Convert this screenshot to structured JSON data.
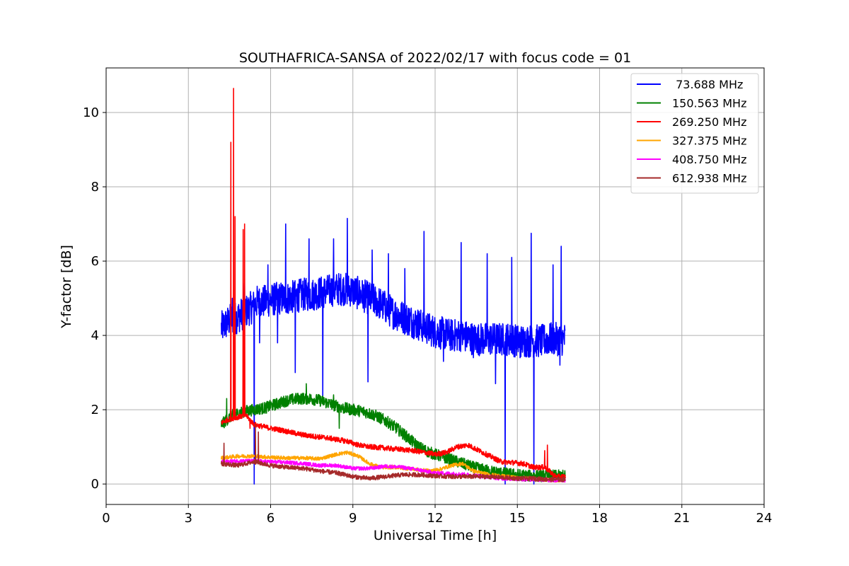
{
  "chart_data": {
    "type": "line",
    "title": "SOUTHAFRICA-SANSA of 2022/02/17 with focus code = 01",
    "xlabel": "Universal Time [h]",
    "ylabel": "Y-factor [dB]",
    "xlim": [
      0,
      24
    ],
    "ylim": [
      -0.55,
      11.2
    ],
    "xticks": [
      0,
      3,
      6,
      9,
      12,
      15,
      18,
      21,
      24
    ],
    "yticks": [
      0,
      2,
      4,
      6,
      8,
      10
    ],
    "grid": true,
    "legend_position": "top-right",
    "series": [
      {
        "name": " 73.688 MHz",
        "color": "#0000ff",
        "x": [
          4.2,
          4.5,
          4.8,
          5.0,
          5.2,
          5.4,
          5.5,
          5.7,
          6.0,
          6.3,
          6.6,
          6.9,
          7.2,
          7.5,
          7.8,
          8.1,
          8.4,
          8.7,
          9.0,
          9.3,
          9.6,
          9.9,
          10.2,
          10.5,
          10.8,
          11.1,
          11.4,
          11.7,
          12.0,
          12.3,
          12.6,
          12.9,
          13.2,
          13.5,
          13.8,
          14.1,
          14.4,
          14.7,
          15.0,
          15.3,
          15.6,
          15.9,
          16.2,
          16.5,
          16.75
        ],
        "y": [
          4.2,
          4.4,
          4.5,
          4.6,
          4.7,
          4.8,
          4.9,
          4.9,
          4.95,
          5.0,
          5.0,
          5.05,
          5.1,
          5.1,
          5.15,
          5.2,
          5.25,
          5.25,
          5.2,
          5.1,
          5.0,
          4.9,
          4.75,
          4.6,
          4.5,
          4.4,
          4.3,
          4.2,
          4.1,
          4.05,
          4.0,
          4.0,
          3.95,
          3.9,
          3.9,
          3.9,
          3.9,
          3.9,
          3.85,
          3.85,
          3.85,
          3.85,
          3.9,
          3.9,
          3.9
        ],
        "noise": 0.45,
        "spikes": [
          [
            4.6,
            5.0
          ],
          [
            5.05,
            5.4
          ],
          [
            5.4,
            0.0
          ],
          [
            5.6,
            3.8
          ],
          [
            5.9,
            5.9
          ],
          [
            6.25,
            3.8
          ],
          [
            6.55,
            7.0
          ],
          [
            6.9,
            3.0
          ],
          [
            7.4,
            6.6
          ],
          [
            7.9,
            2.3
          ],
          [
            8.3,
            6.6
          ],
          [
            8.8,
            7.15
          ],
          [
            9.55,
            2.75
          ],
          [
            9.7,
            6.3
          ],
          [
            10.3,
            6.2
          ],
          [
            10.9,
            5.8
          ],
          [
            11.6,
            6.8
          ],
          [
            12.3,
            3.3
          ],
          [
            12.95,
            6.5
          ],
          [
            13.4,
            3.4
          ],
          [
            13.9,
            6.2
          ],
          [
            14.2,
            2.7
          ],
          [
            14.55,
            0.0
          ],
          [
            14.8,
            6.1
          ],
          [
            15.1,
            3.4
          ],
          [
            15.5,
            6.75
          ],
          [
            15.6,
            0.0
          ],
          [
            16.3,
            5.9
          ],
          [
            16.55,
            3.2
          ],
          [
            16.6,
            6.4
          ]
        ]
      },
      {
        "name": "150.563 MHz",
        "color": "#008000",
        "x": [
          4.2,
          4.6,
          5.0,
          5.4,
          5.8,
          6.2,
          6.6,
          7.0,
          7.4,
          7.8,
          8.2,
          8.6,
          9.0,
          9.4,
          9.8,
          10.2,
          10.6,
          11.0,
          11.4,
          11.8,
          12.2,
          12.6,
          13.0,
          13.4,
          13.8,
          14.2,
          14.6,
          15.0,
          15.4,
          15.8,
          16.2,
          16.75
        ],
        "y": [
          1.6,
          1.85,
          1.95,
          2.0,
          2.05,
          2.15,
          2.25,
          2.3,
          2.3,
          2.25,
          2.15,
          2.05,
          2.0,
          1.95,
          1.85,
          1.7,
          1.5,
          1.25,
          1.0,
          0.85,
          0.75,
          0.65,
          0.55,
          0.45,
          0.38,
          0.32,
          0.28,
          0.25,
          0.22,
          0.22,
          0.22,
          0.22
        ],
        "noise": 0.16,
        "spikes": [
          [
            4.4,
            2.3
          ],
          [
            7.3,
            2.7
          ],
          [
            8.3,
            2.4
          ],
          [
            8.5,
            1.5
          ]
        ]
      },
      {
        "name": "269.250 MHz",
        "color": "#ff0000",
        "x": [
          4.2,
          4.5,
          4.8,
          5.1,
          5.4,
          5.7,
          6.0,
          6.4,
          6.8,
          7.2,
          7.6,
          8.0,
          8.4,
          8.8,
          9.2,
          9.6,
          10.0,
          10.4,
          10.8,
          11.2,
          11.6,
          12.0,
          12.4,
          12.8,
          13.2,
          13.6,
          14.0,
          14.4,
          14.8,
          15.2,
          15.6,
          16.0,
          16.4,
          16.75
        ],
        "y": [
          1.65,
          1.75,
          1.8,
          1.85,
          1.6,
          1.55,
          1.5,
          1.45,
          1.38,
          1.32,
          1.28,
          1.25,
          1.2,
          1.15,
          1.05,
          1.0,
          0.98,
          0.95,
          0.93,
          0.9,
          0.85,
          0.8,
          0.85,
          1.0,
          1.05,
          0.9,
          0.75,
          0.6,
          0.58,
          0.55,
          0.45,
          0.45,
          0.2,
          0.2
        ],
        "noise": 0.07,
        "spikes": [
          [
            4.55,
            9.2
          ],
          [
            4.65,
            10.65
          ],
          [
            4.7,
            7.2
          ],
          [
            5.0,
            6.85
          ],
          [
            5.05,
            7.0
          ],
          [
            5.25,
            1.5
          ],
          [
            16.0,
            0.9
          ],
          [
            16.1,
            1.05
          ]
        ]
      },
      {
        "name": "327.375 MHz",
        "color": "#ffa500",
        "x": [
          4.2,
          4.8,
          5.4,
          6.0,
          6.6,
          7.2,
          7.8,
          8.4,
          8.8,
          9.2,
          9.6,
          10.0,
          10.6,
          11.2,
          11.8,
          12.2,
          12.6,
          13.0,
          13.4,
          14.0,
          14.6,
          15.2,
          15.8,
          16.4,
          16.75
        ],
        "y": [
          0.7,
          0.75,
          0.75,
          0.72,
          0.7,
          0.7,
          0.68,
          0.8,
          0.85,
          0.75,
          0.55,
          0.45,
          0.45,
          0.4,
          0.35,
          0.4,
          0.5,
          0.55,
          0.35,
          0.25,
          0.2,
          0.15,
          0.12,
          0.1,
          0.1
        ],
        "noise": 0.05,
        "spikes": []
      },
      {
        "name": "408.750 MHz",
        "color": "#ff00ff",
        "x": [
          4.2,
          4.8,
          5.4,
          6.0,
          6.6,
          7.2,
          7.8,
          8.4,
          9.0,
          9.6,
          10.2,
          10.8,
          11.4,
          12.0,
          12.6,
          13.2,
          13.8,
          14.4,
          15.0,
          15.6,
          16.2,
          16.75
        ],
        "y": [
          0.6,
          0.62,
          0.62,
          0.6,
          0.58,
          0.55,
          0.5,
          0.5,
          0.42,
          0.42,
          0.48,
          0.45,
          0.38,
          0.3,
          0.28,
          0.25,
          0.2,
          0.15,
          0.13,
          0.12,
          0.1,
          0.1
        ],
        "noise": 0.05,
        "spikes": []
      },
      {
        "name": "612.938 MHz",
        "color": "#a52a2a",
        "x": [
          4.2,
          4.8,
          5.4,
          6.0,
          6.6,
          7.2,
          7.8,
          8.4,
          9.0,
          9.6,
          10.2,
          10.8,
          11.4,
          12.0,
          12.6,
          13.2,
          13.8,
          14.4,
          15.0,
          15.6,
          16.2,
          16.75
        ],
        "y": [
          0.55,
          0.5,
          0.6,
          0.5,
          0.45,
          0.42,
          0.35,
          0.3,
          0.2,
          0.15,
          0.2,
          0.25,
          0.25,
          0.22,
          0.2,
          0.2,
          0.2,
          0.18,
          0.15,
          0.15,
          0.12,
          0.12
        ],
        "noise": 0.06,
        "spikes": [
          [
            4.3,
            1.1
          ],
          [
            5.45,
            1.6
          ],
          [
            5.55,
            1.4
          ]
        ]
      }
    ]
  }
}
